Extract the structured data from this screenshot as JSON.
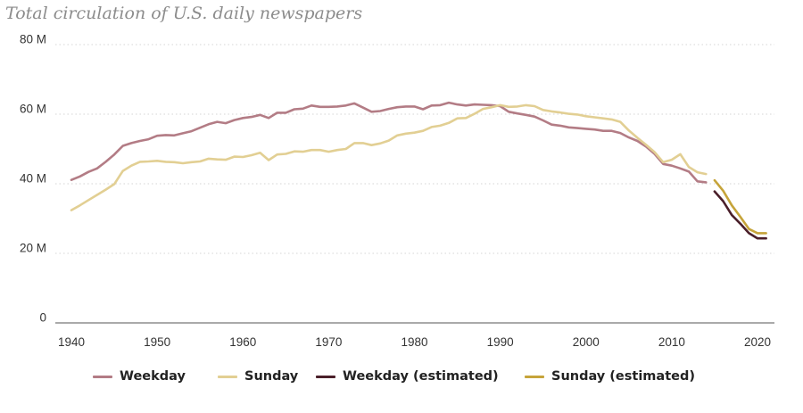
{
  "chart_data": {
    "type": "line",
    "title": "Total circulation of U.S. daily newspapers",
    "xlabel": "",
    "ylabel": "",
    "xlim": [
      1940,
      2022
    ],
    "ylim": [
      0,
      80
    ],
    "x_ticks": [
      1940,
      1950,
      1960,
      1970,
      1980,
      1990,
      2000,
      2010,
      2020
    ],
    "y_ticks": [
      {
        "value": 0,
        "label": "0"
      },
      {
        "value": 20,
        "label": "20 M"
      },
      {
        "value": 40,
        "label": "40 M"
      },
      {
        "value": 60,
        "label": "60 M"
      },
      {
        "value": 80,
        "label": "80 M"
      }
    ],
    "grid": true,
    "legend_position": "bottom",
    "series": [
      {
        "name": "Weekday",
        "color": "#b37c85",
        "x": [
          1940,
          1941,
          1942,
          1943,
          1944,
          1945,
          1946,
          1947,
          1948,
          1949,
          1950,
          1951,
          1952,
          1953,
          1954,
          1955,
          1956,
          1957,
          1958,
          1959,
          1960,
          1961,
          1962,
          1963,
          1964,
          1965,
          1966,
          1967,
          1968,
          1969,
          1970,
          1971,
          1972,
          1973,
          1974,
          1975,
          1976,
          1977,
          1978,
          1979,
          1980,
          1981,
          1982,
          1983,
          1984,
          1985,
          1986,
          1987,
          1988,
          1989,
          1990,
          1991,
          1992,
          1993,
          1994,
          1995,
          1996,
          1997,
          1998,
          1999,
          2000,
          2001,
          2002,
          2003,
          2004,
          2005,
          2006,
          2007,
          2008,
          2009,
          2010,
          2011,
          2012,
          2013,
          2014
        ],
        "values": [
          41.1,
          42.1,
          43.4,
          44.4,
          46.3,
          48.4,
          50.9,
          51.7,
          52.3,
          52.8,
          53.8,
          54.0,
          53.9,
          54.5,
          55.1,
          56.1,
          57.1,
          57.8,
          57.4,
          58.3,
          58.9,
          59.2,
          59.8,
          58.9,
          60.4,
          60.4,
          61.4,
          61.6,
          62.5,
          62.1,
          62.1,
          62.2,
          62.5,
          63.1,
          61.9,
          60.7,
          60.9,
          61.5,
          62.0,
          62.2,
          62.2,
          61.4,
          62.5,
          62.6,
          63.3,
          62.8,
          62.5,
          62.8,
          62.7,
          62.6,
          62.3,
          60.7,
          60.2,
          59.8,
          59.3,
          58.2,
          57.0,
          56.7,
          56.2,
          56.0,
          55.8,
          55.6,
          55.2,
          55.2,
          54.6,
          53.3,
          52.3,
          50.7,
          48.6,
          45.7,
          45.2,
          44.4,
          43.5,
          40.7,
          40.4
        ]
      },
      {
        "name": "Sunday",
        "color": "#e2cf93",
        "x": [
          1940,
          1941,
          1942,
          1943,
          1944,
          1945,
          1946,
          1947,
          1948,
          1949,
          1950,
          1951,
          1952,
          1953,
          1954,
          1955,
          1956,
          1957,
          1958,
          1959,
          1960,
          1961,
          1962,
          1963,
          1964,
          1965,
          1966,
          1967,
          1968,
          1969,
          1970,
          1971,
          1972,
          1973,
          1974,
          1975,
          1976,
          1977,
          1978,
          1979,
          1980,
          1981,
          1982,
          1983,
          1984,
          1985,
          1986,
          1987,
          1988,
          1989,
          1990,
          1991,
          1992,
          1993,
          1994,
          1995,
          1996,
          1997,
          1998,
          1999,
          2000,
          2001,
          2002,
          2003,
          2004,
          2005,
          2006,
          2007,
          2008,
          2009,
          2010,
          2011,
          2012,
          2013,
          2014
        ],
        "values": [
          32.4,
          33.8,
          35.3,
          36.8,
          38.3,
          39.9,
          43.7,
          45.2,
          46.3,
          46.4,
          46.6,
          46.3,
          46.2,
          45.9,
          46.2,
          46.4,
          47.2,
          47.0,
          46.9,
          47.8,
          47.7,
          48.2,
          48.9,
          46.8,
          48.4,
          48.6,
          49.3,
          49.2,
          49.7,
          49.7,
          49.2,
          49.7,
          50.0,
          51.7,
          51.7,
          51.1,
          51.6,
          52.4,
          53.9,
          54.4,
          54.7,
          55.2,
          56.3,
          56.7,
          57.5,
          58.8,
          58.9,
          60.1,
          61.5,
          62.0,
          62.6,
          62.1,
          62.2,
          62.6,
          62.3,
          61.2,
          60.8,
          60.5,
          60.1,
          59.9,
          59.4,
          59.1,
          58.8,
          58.5,
          57.8,
          55.3,
          53.2,
          51.2,
          49.1,
          46.2,
          46.9,
          48.5,
          44.8,
          43.3,
          42.8
        ]
      },
      {
        "name": "Weekday (estimated)",
        "color": "#4a1f2a",
        "x": [
          2015,
          2016,
          2017,
          2018,
          2019,
          2020,
          2021
        ],
        "values": [
          37.8,
          35.0,
          31.0,
          28.5,
          25.8,
          24.3,
          24.3
        ]
      },
      {
        "name": "Sunday (estimated)",
        "color": "#c6a43a",
        "x": [
          2015,
          2016,
          2017,
          2018,
          2019,
          2020,
          2021
        ],
        "values": [
          41.0,
          38.0,
          33.8,
          30.5,
          27.0,
          25.8,
          25.8
        ]
      }
    ]
  }
}
